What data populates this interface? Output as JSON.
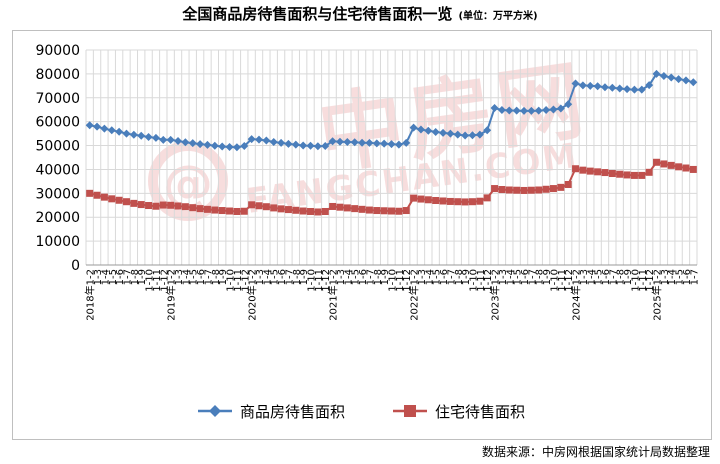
{
  "page": {
    "title": "全国商品房待售面积与住宅待售面积一览",
    "unit": "(单位：万平方米)",
    "source": "数据来源：中房网根据国家统计局数据整理",
    "watermark_cn": "中房网",
    "watermark_en": "FANGCHAN.COM"
  },
  "colors": {
    "commercial": "#4a7ebb",
    "residential": "#c0504d",
    "grid": "#d9d9d9",
    "watermark": "#f1c2c2"
  },
  "chart_data": {
    "type": "line",
    "title": "全国商品房待售面积与住宅待售面积一览",
    "ylim": [
      0,
      90000
    ],
    "yticks": [
      0,
      10000,
      20000,
      30000,
      40000,
      50000,
      60000,
      70000,
      80000,
      90000
    ],
    "grid": true,
    "legend": "bottom",
    "years": [
      "2018",
      "2019",
      "2020",
      "2021",
      "2022",
      "2023",
      "2024",
      "2025"
    ],
    "months": [
      [
        "1-2",
        "1-3",
        "1-4",
        "1-5",
        "1-6",
        "1-7",
        "1-8",
        "1-9",
        "1-10",
        "1-11",
        "1-12"
      ],
      [
        "1-2",
        "1-3",
        "1-4",
        "1-5",
        "1-6",
        "1-7",
        "1-8",
        "1-9",
        "1-10",
        "1-11",
        "1-12"
      ],
      [
        "1-2",
        "1-3",
        "1-4",
        "1-5",
        "1-6",
        "1-7",
        "1-8",
        "1-9",
        "1-10",
        "1-11",
        "1-12"
      ],
      [
        "1-2",
        "1-3",
        "1-4",
        "1-5",
        "1-6",
        "1-7",
        "1-8",
        "1-9",
        "1-10",
        "1-11",
        "1-12"
      ],
      [
        "1-2",
        "1-3",
        "1-4",
        "1-5",
        "1-6",
        "1-7",
        "1-8",
        "1-9",
        "1-10",
        "1-11",
        "1-12"
      ],
      [
        "1-2",
        "1-3",
        "1-4",
        "1-5",
        "1-6",
        "1-7",
        "1-8",
        "1-9",
        "1-10",
        "1-11",
        "1-12"
      ],
      [
        "1-2",
        "1-3",
        "1-4",
        "1-5",
        "1-6",
        "1-7",
        "1-8",
        "1-9",
        "1-10",
        "1-11",
        "1-12"
      ],
      [
        "1-2",
        "1-3",
        "1-4",
        "1-5",
        "1-6",
        "1-7"
      ]
    ],
    "series": [
      {
        "name": "商品房待售面积",
        "values": [
          58500,
          57900,
          57100,
          56400,
          55800,
          55000,
          54500,
          54100,
          53600,
          53200,
          52400,
          52400,
          51900,
          51400,
          51000,
          50600,
          50300,
          49900,
          49600,
          49400,
          49300,
          49800,
          52700,
          52500,
          52100,
          51500,
          51100,
          50700,
          50400,
          50000,
          49900,
          49700,
          49800,
          51800,
          51600,
          51500,
          51400,
          51200,
          51100,
          50900,
          50800,
          50600,
          50400,
          51100,
          57500,
          56700,
          56200,
          55700,
          55300,
          55000,
          54600,
          54200,
          54300,
          54600,
          56400,
          65700,
          64900,
          64700,
          64600,
          64500,
          64500,
          64600,
          64900,
          65100,
          65500,
          67300,
          76000,
          75200,
          75000,
          74800,
          74400,
          74200,
          73900,
          73600,
          73400,
          73400,
          75300,
          80000,
          79100,
          78500,
          77800,
          77300,
          76500
        ]
      },
      {
        "name": "住宅待售面积",
        "values": [
          30000,
          29200,
          28400,
          27700,
          27100,
          26500,
          25800,
          25300,
          24900,
          24600,
          25100,
          25000,
          24700,
          24400,
          24000,
          23600,
          23300,
          23000,
          22800,
          22600,
          22400,
          22500,
          25200,
          24800,
          24400,
          23900,
          23500,
          23200,
          22900,
          22600,
          22400,
          22200,
          22400,
          24500,
          24200,
          23900,
          23600,
          23300,
          23000,
          22800,
          22700,
          22600,
          22500,
          22800,
          28000,
          27600,
          27300,
          27000,
          26800,
          26600,
          26500,
          26400,
          26500,
          26700,
          28100,
          32000,
          31600,
          31400,
          31300,
          31200,
          31300,
          31400,
          31700,
          32000,
          32500,
          33700,
          40300,
          39700,
          39300,
          39000,
          38700,
          38300,
          38000,
          37700,
          37500,
          37500,
          38800,
          43000,
          42300,
          41700,
          41100,
          40600,
          40000
        ]
      }
    ]
  }
}
